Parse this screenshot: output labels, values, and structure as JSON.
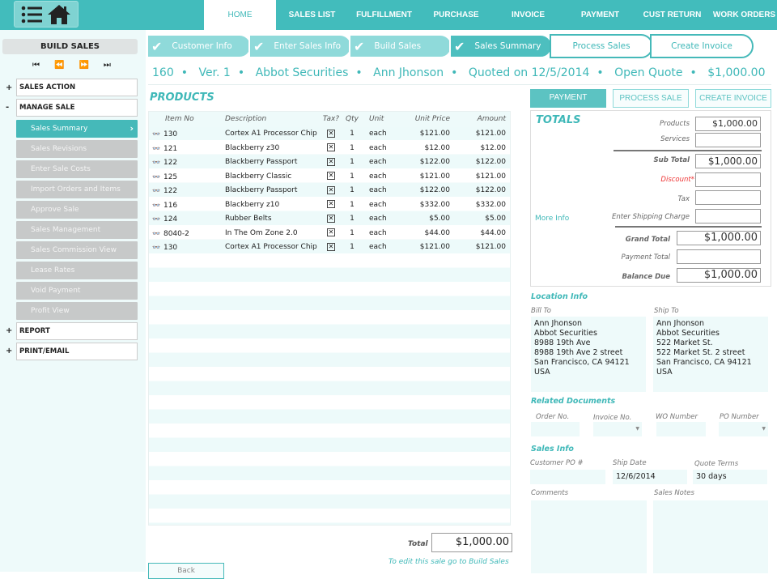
{
  "nav": {
    "items": [
      "HOME",
      "SALES LIST",
      "FULFILLMENT",
      "PURCHASE",
      "INVOICE",
      "PAYMENT",
      "CUST RETURN",
      "WORK ORDERS"
    ],
    "active": "HOME"
  },
  "sidebar": {
    "title": "BUILD SALES",
    "sections": [
      {
        "sign": "+",
        "label": "SALES ACTION"
      },
      {
        "sign": "-",
        "label": "MANAGE SALE"
      },
      {
        "sign": "+",
        "label": "REPORT"
      },
      {
        "sign": "+",
        "label": "PRINT/EMAIL"
      }
    ],
    "sub_items": [
      "Sales Summary",
      "Sales Revisions",
      "Enter Sale Costs",
      "Import Orders and Items",
      "Approve Sale",
      "Sales Management",
      "Sales Commission View",
      "Lease Rates",
      "Void Payment",
      "Profit View"
    ],
    "active_sub": "Sales Summary"
  },
  "steps": [
    {
      "label": "Customer Info",
      "done": true
    },
    {
      "label": "Enter Sales Info",
      "done": true
    },
    {
      "label": "Build Sales",
      "done": true
    },
    {
      "label": "Sales Summary",
      "done": true,
      "current": true
    },
    {
      "label": "Process Sales",
      "done": false
    },
    {
      "label": "Create Invoice",
      "done": false
    }
  ],
  "sale": {
    "number": "160",
    "version": "Ver. 1",
    "company": "Abbot Securities",
    "contact": "Ann Jhonson",
    "quoted": "Quoted on 12/5/2014",
    "status": "Open Quote",
    "amount": "$1,000.00"
  },
  "products": {
    "title": "PRODUCTS",
    "columns": [
      "Item No",
      "Description",
      "Tax?",
      "Qty",
      "Unit",
      "Unit Price",
      "Amount"
    ],
    "rows": [
      [
        "130",
        "Cortex A1 Processor Chip",
        "1",
        "each",
        "$121.00",
        "$121.00"
      ],
      [
        "121",
        "Blackberry z30",
        "1",
        "each",
        "$12.00",
        "$12.00"
      ],
      [
        "122",
        "Blackberry Passport",
        "1",
        "each",
        "$122.00",
        "$122.00"
      ],
      [
        "125",
        "Blackberry Classic",
        "1",
        "each",
        "$121.00",
        "$121.00"
      ],
      [
        "122",
        "Blackberry Passport",
        "1",
        "each",
        "$122.00",
        "$122.00"
      ],
      [
        "116",
        "Blackberry z10",
        "1",
        "each",
        "$332.00",
        "$332.00"
      ],
      [
        "124",
        "Rubber Belts",
        "1",
        "each",
        "$5.00",
        "$5.00"
      ],
      [
        "8040-2",
        "In The Om Zone 2.0",
        "1",
        "each",
        "$44.00",
        "$44.00"
      ],
      [
        "130",
        "Cortex A1 Processor Chip",
        "1",
        "each",
        "$121.00",
        "$121.00"
      ]
    ],
    "total_label": "Total",
    "total": "$1,000.00",
    "edit_note": "To edit this sale go to Build Sales",
    "back": "Back"
  },
  "actions": {
    "payment": "PAYMENT",
    "process": "PROCESS SALE",
    "invoice": "CREATE INVOICE"
  },
  "totals": {
    "title": "TOTALS",
    "more_info": "More Info",
    "products_label": "Products",
    "products": "$1,000.00",
    "services_label": "Services",
    "services": "",
    "subtotal_label": "Sub Total",
    "subtotal": "$1,000.00",
    "discount_label": "Discount",
    "discount": "",
    "tax_label": "Tax",
    "tax": "",
    "shipping_label": "Enter Shipping Charge",
    "shipping": "",
    "grand_label": "Grand Total",
    "grand": "$1,000.00",
    "payment_label": "Payment Total",
    "payment": "",
    "balance_label": "Balance Due",
    "balance": "$1,000.00"
  },
  "location": {
    "title": "Location Info",
    "bill_label": "Bill To",
    "ship_label": "Ship To",
    "bill": [
      "Ann Jhonson",
      "Abbot Securities",
      "8988 19th Ave",
      "8988 19th Ave 2 street",
      "San Francisco, CA 94121",
      "USA"
    ],
    "ship": [
      "Ann Jhonson",
      "Abbot Securities",
      "522 Market St.",
      "522 Market St. 2 street",
      "San Francisco, CA 94121",
      "USA"
    ]
  },
  "related": {
    "title": "Related Documents",
    "order": "Order No.",
    "invoice": "Invoice No.",
    "wo": "WO Number",
    "po": "PO Number"
  },
  "sales_info": {
    "title": "Sales Info",
    "customer_po_label": "Customer PO #",
    "customer_po": "",
    "ship_date_label": "Ship Date",
    "ship_date": "12/6/2014",
    "terms_label": "Quote Terms",
    "terms": "30 days",
    "comments_label": "Comments",
    "notes_label": "Sales Notes"
  },
  "colors": {
    "accent": "#42bcbc",
    "light": "#eefafa",
    "disabled": "#c7c9c9",
    "discount": "#ee3333"
  }
}
